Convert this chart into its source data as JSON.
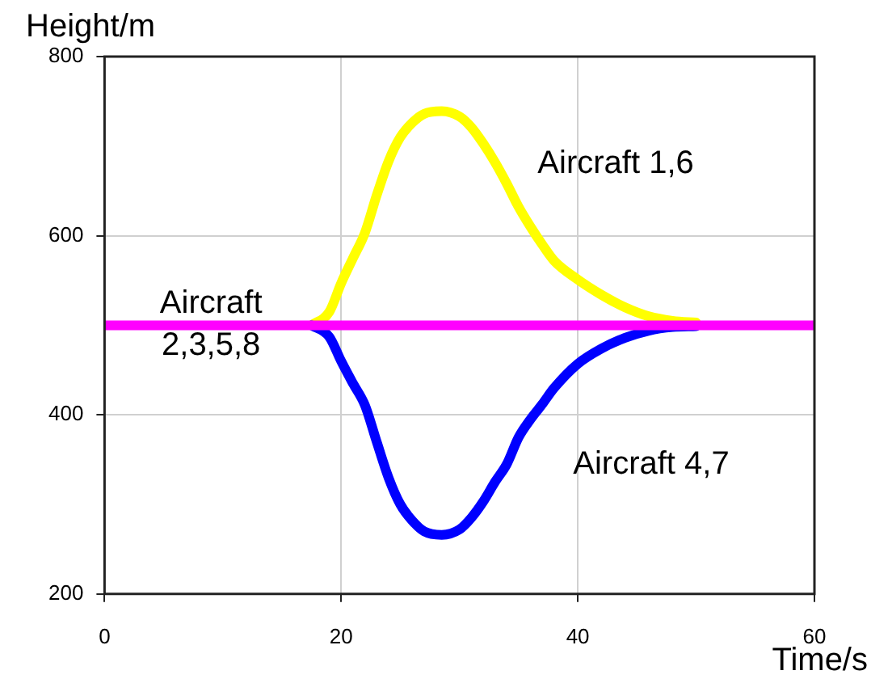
{
  "chart_data": {
    "type": "line",
    "xlabel": "Time/s",
    "ylabel": "Height/m",
    "xlim": [
      0,
      60
    ],
    "xticks": [
      0,
      20,
      40,
      60
    ],
    "ylim": [
      200,
      800
    ],
    "yticks": [
      200,
      400,
      600,
      800
    ],
    "grid": true,
    "legend": false,
    "marker": "none",
    "line_style": "solid",
    "x": [
      0,
      17.5,
      19,
      20,
      21,
      22,
      23,
      24,
      25,
      26,
      27,
      28.5,
      30,
      31,
      32,
      33,
      34,
      35,
      36,
      37,
      38,
      40,
      42,
      44,
      46,
      48,
      50,
      55,
      60
    ],
    "series": [
      {
        "name": "Aircraft 1,6",
        "color": "#ffff00",
        "values": [
          null,
          500,
          515,
          547,
          575,
          603,
          645,
          683,
          710,
          726,
          736,
          739,
          733,
          721,
          703,
          682,
          658,
          632,
          610,
          590,
          572,
          551,
          534,
          520,
          510,
          505,
          503,
          null,
          null
        ]
      },
      {
        "name": "Aircraft 4,7",
        "color": "#0000ff",
        "values": [
          null,
          500,
          487,
          460,
          435,
          411,
          370,
          330,
          300,
          282,
          270,
          266,
          272,
          285,
          303,
          325,
          345,
          375,
          395,
          412,
          430,
          457,
          474,
          486,
          494,
          498,
          499,
          null,
          null
        ]
      },
      {
        "name": "Aircraft 2,3,5,8",
        "color": "#ff00ff",
        "values": [
          500,
          500,
          500,
          500,
          500,
          500,
          500,
          500,
          500,
          500,
          500,
          500,
          500,
          500,
          500,
          500,
          500,
          500,
          500,
          500,
          500,
          500,
          500,
          500,
          500,
          500,
          500,
          500,
          500
        ]
      }
    ]
  }
}
